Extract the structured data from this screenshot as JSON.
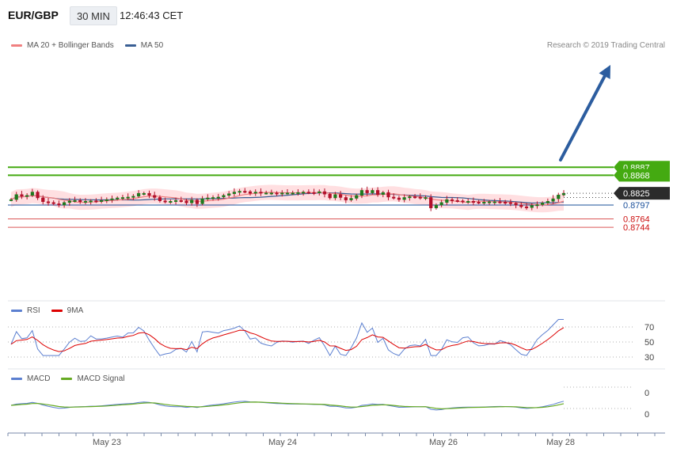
{
  "header": {
    "pair": "EUR/GBP",
    "timeframe": "30 MIN",
    "time": "12:46:43 CET"
  },
  "credit": "Research © 2019 Trading Central",
  "colors": {
    "green": "#44aa11",
    "red": "#cc1111",
    "blue": "#1a4f9a",
    "arrow": "#2c5d9f",
    "band": "#ffd9dc",
    "ma20": "#f08080",
    "ma50": "#3a5f94",
    "rsi": "#5b7fd0",
    "ninema": "#dd0000",
    "macd": "#5b7fd0",
    "macd_signal": "#66aa22",
    "candle": "#b2102a"
  },
  "legend": {
    "price": [
      {
        "name": "MA 20 + Bollinger Bands",
        "color": "#f08080"
      },
      {
        "name": "MA 50",
        "color": "#3a5f94"
      }
    ],
    "rsi": [
      {
        "name": "RSI",
        "color": "#5b7fd0"
      },
      {
        "name": "9MA",
        "color": "#dd0000"
      }
    ],
    "macd": [
      {
        "name": "MACD",
        "color": "#5b7fd0"
      },
      {
        "name": "MACD Signal",
        "color": "#66aa22"
      }
    ]
  },
  "chart_data": {
    "type": "candlestick",
    "x_labels": [
      "May 23",
      "May 24",
      "May 26",
      "May 28"
    ],
    "current_price": "0.8825",
    "levels": [
      {
        "value": 0.8887,
        "label": "0.8887",
        "kind": "resistance"
      },
      {
        "value": 0.8868,
        "label": "0.8868",
        "kind": "resistance"
      },
      {
        "value": 0.8797,
        "label": "0.8797",
        "kind": "pivot"
      },
      {
        "value": 0.8764,
        "label": "0.8764",
        "kind": "support"
      },
      {
        "value": 0.8744,
        "label": "0.8744",
        "kind": "support"
      }
    ],
    "target": 0.8887,
    "close": [
      0.881,
      0.8822,
      0.8818,
      0.882,
      0.8828,
      0.8814,
      0.8805,
      0.8803,
      0.88,
      0.8797,
      0.8803,
      0.8807,
      0.8808,
      0.8805,
      0.8806,
      0.8807,
      0.8806,
      0.8808,
      0.881,
      0.8812,
      0.8814,
      0.8815,
      0.8816,
      0.8818,
      0.8825,
      0.8825,
      0.882,
      0.8815,
      0.8807,
      0.8806,
      0.8806,
      0.8808,
      0.8807,
      0.8802,
      0.8809,
      0.88,
      0.8812,
      0.8814,
      0.8815,
      0.8816,
      0.882,
      0.8824,
      0.8828,
      0.883,
      0.8829,
      0.8825,
      0.8828,
      0.8826,
      0.8826,
      0.8826,
      0.8825,
      0.8826,
      0.8826,
      0.8826,
      0.8827,
      0.8828,
      0.8827,
      0.8826,
      0.8829,
      0.8823,
      0.8814,
      0.8822,
      0.8815,
      0.8809,
      0.8813,
      0.882,
      0.8832,
      0.8826,
      0.8832,
      0.8822,
      0.8827,
      0.8816,
      0.8814,
      0.881,
      0.8815,
      0.8817,
      0.8816,
      0.8815,
      0.8815,
      0.879,
      0.8797,
      0.8803,
      0.881,
      0.8808,
      0.8807,
      0.8806,
      0.8806,
      0.8804,
      0.8803,
      0.8804,
      0.8805,
      0.8805,
      0.8804,
      0.8803,
      0.8801,
      0.8797,
      0.8793,
      0.8791,
      0.8796,
      0.8798,
      0.8802,
      0.8806,
      0.8812,
      0.8821,
      0.8825
    ],
    "rsi": {
      "ticks": [
        70,
        50,
        30
      ]
    },
    "macd": {
      "ticks": [
        "0",
        "0"
      ]
    }
  }
}
